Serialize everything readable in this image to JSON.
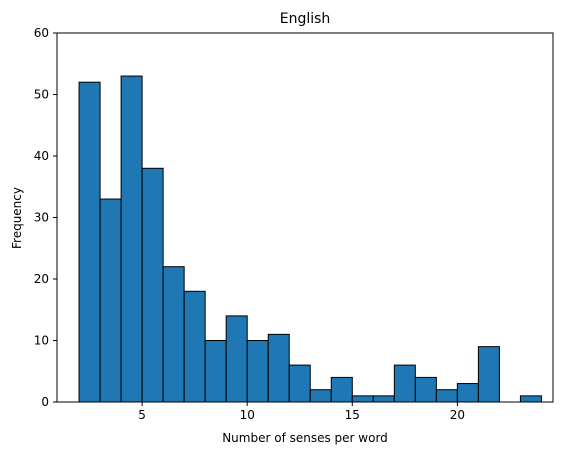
{
  "chart_data": {
    "type": "bar",
    "title": "English",
    "xlabel": "Number of senses per word",
    "ylabel": "Frequency",
    "xlim": [
      0.95,
      24.55
    ],
    "ylim": [
      0,
      60
    ],
    "x_ticks": [
      5,
      10,
      15,
      20
    ],
    "y_ticks": [
      0,
      10,
      20,
      30,
      40,
      50,
      60
    ],
    "bin_edges": [
      2.0,
      3.0,
      4.0,
      5.0,
      6.0,
      7.0,
      8.0,
      9.0,
      10.0,
      11.0,
      12.0,
      13.0,
      14.0,
      15.0,
      16.0,
      17.0,
      18.0,
      19.0,
      20.0,
      21.0,
      22.0,
      23.0,
      24.0
    ],
    "values": [
      52,
      33,
      53,
      38,
      22,
      18,
      10,
      14,
      10,
      11,
      6,
      2,
      4,
      1,
      1,
      6,
      4,
      2,
      3,
      9,
      0,
      1
    ],
    "bar_color": "#1f77b4",
    "edge_color": "#000000",
    "grid": false,
    "legend": "none"
  }
}
